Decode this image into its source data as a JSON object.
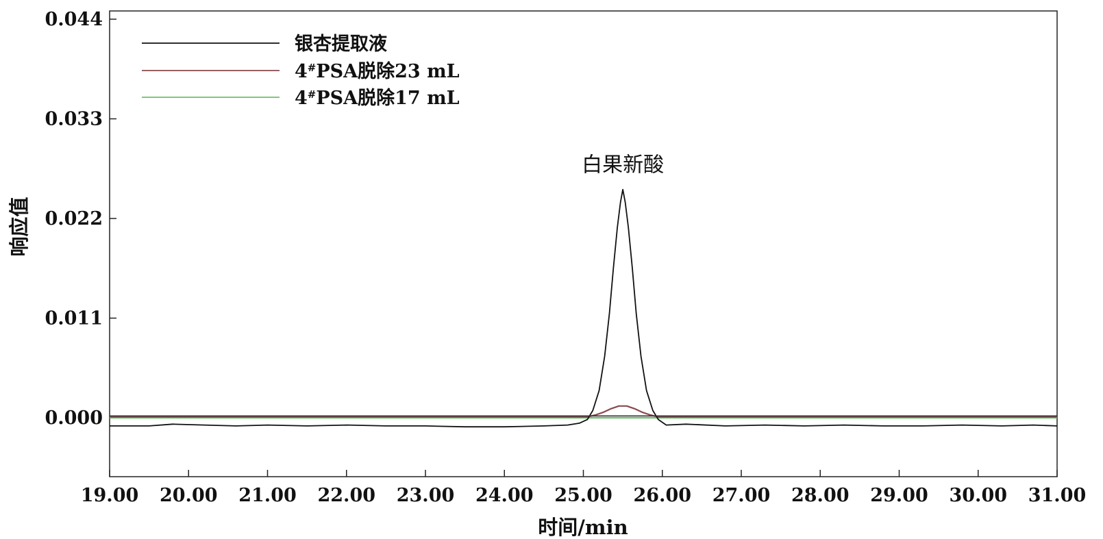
{
  "chart_data": {
    "type": "line",
    "title": "",
    "xlabel": "时间/min",
    "ylabel": "响应值",
    "xlim": [
      19.0,
      31.0
    ],
    "ylim": [
      -0.0065,
      0.044
    ],
    "x_ticks": [
      "19.00",
      "20.00",
      "21.00",
      "22.00",
      "23.00",
      "24.00",
      "25.00",
      "26.00",
      "27.00",
      "28.00",
      "29.00",
      "30.00",
      "31.00"
    ],
    "y_ticks": [
      "0.044",
      "0.033",
      "0.022",
      "0.011",
      "0.000"
    ],
    "grid": false,
    "legend_position": "top-left",
    "annotations": [
      {
        "text": "白果新酸",
        "x": 25.5,
        "y": 0.0275
      }
    ],
    "series": [
      {
        "name": "银杏提取液",
        "color": "#111111",
        "x": [
          19.0,
          19.5,
          19.8,
          20.2,
          20.6,
          21.0,
          21.5,
          22.0,
          22.5,
          23.0,
          23.5,
          24.0,
          24.5,
          24.8,
          24.95,
          25.05,
          25.12,
          25.2,
          25.27,
          25.33,
          25.38,
          25.43,
          25.47,
          25.5,
          25.53,
          25.57,
          25.62,
          25.67,
          25.73,
          25.8,
          25.88,
          25.95,
          26.05,
          26.3,
          26.8,
          27.3,
          27.8,
          28.3,
          28.8,
          29.3,
          29.8,
          30.3,
          30.7,
          31.0
        ],
        "y": [
          -0.0009,
          -0.0009,
          -0.0007,
          -0.0008,
          -0.0009,
          -0.0008,
          -0.0009,
          -0.0008,
          -0.0009,
          -0.0009,
          -0.001,
          -0.001,
          -0.0009,
          -0.0008,
          -0.0006,
          -0.0002,
          0.0008,
          0.003,
          0.0068,
          0.0115,
          0.0165,
          0.021,
          0.0238,
          0.0252,
          0.0238,
          0.021,
          0.0165,
          0.0115,
          0.0068,
          0.003,
          0.0008,
          -0.0002,
          -0.0008,
          -0.0007,
          -0.0009,
          -0.0008,
          -0.0009,
          -0.0008,
          -0.0009,
          -0.0009,
          -0.0008,
          -0.0009,
          -0.0008,
          -0.0009
        ]
      },
      {
        "name": "4#PSA脱除23 mL",
        "color": "#8a4a4e",
        "x": [
          19.0,
          25.05,
          25.15,
          25.25,
          25.35,
          25.45,
          25.5,
          25.55,
          25.65,
          25.75,
          25.85,
          25.95,
          31.0
        ],
        "y": [
          0.0001,
          0.0001,
          0.0003,
          0.0006,
          0.001,
          0.0013,
          0.0013,
          0.0013,
          0.001,
          0.0006,
          0.0003,
          0.0001,
          0.0001
        ]
      },
      {
        "name": "4#PSA脱除17 mL",
        "color": "#6cc06c",
        "x": [
          19.0,
          31.0
        ],
        "y": [
          0.0,
          0.0
        ]
      }
    ]
  },
  "legend_sup": "#",
  "legend_prefix": "4"
}
